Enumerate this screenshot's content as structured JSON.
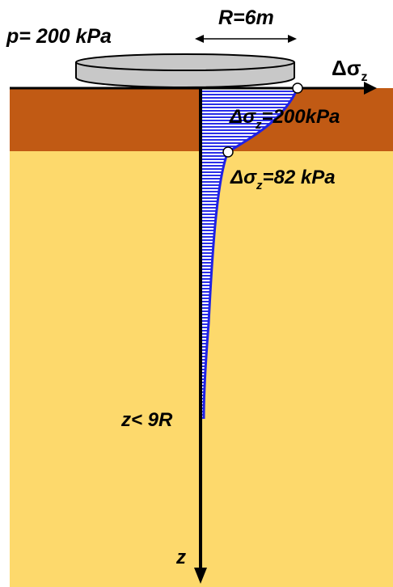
{
  "labels": {
    "pressure": "p= 200 kPa",
    "radius": "R=6m",
    "stress_axis": "Δσ",
    "stress_axis_sub": "z",
    "stress_top_prefix": "Δσ",
    "stress_top_sub": "z",
    "stress_top_value": "=200kPa",
    "stress_mid_prefix": "Δσ",
    "stress_mid_sub": "z",
    "stress_mid_value": "=82 kPa",
    "depth_limit": "z< 9R",
    "depth_axis": "z"
  },
  "colors": {
    "surface_layer": "#c15a14",
    "lower_layer": "#fdd96c",
    "footing": "#c8c8c8",
    "stress_curve": "#1f22e6",
    "axis": "#000000"
  }
}
